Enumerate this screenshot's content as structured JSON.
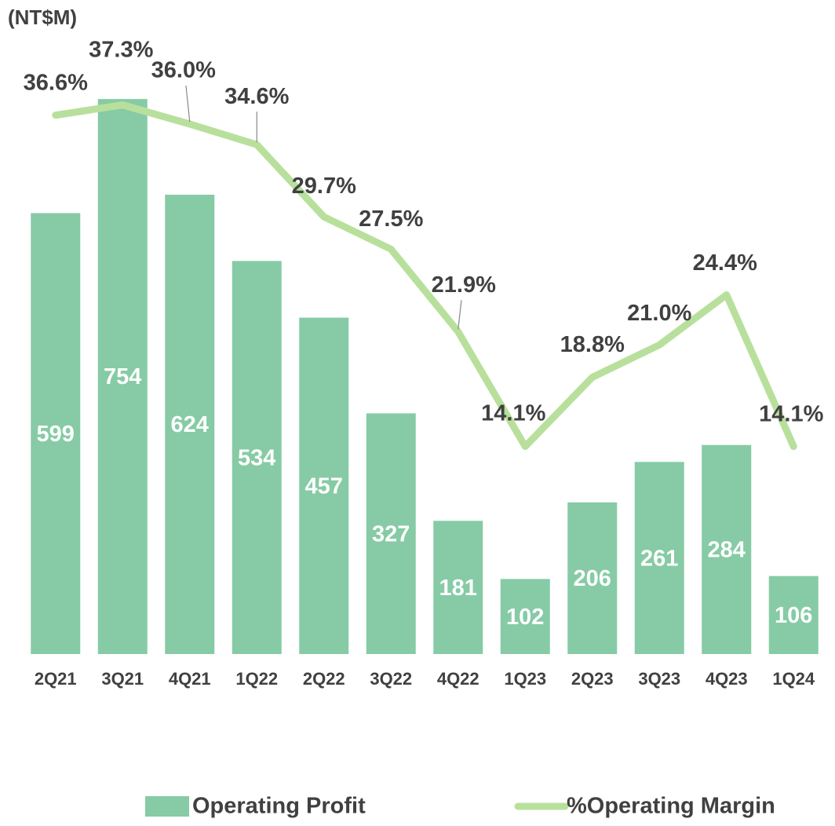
{
  "chart_data": {
    "type": "bar_line",
    "unit_label": "(NT$M)",
    "categories": [
      "2Q21",
      "3Q21",
      "4Q21",
      "1Q22",
      "2Q22",
      "3Q22",
      "4Q22",
      "1Q23",
      "2Q23",
      "3Q23",
      "4Q23",
      "1Q24"
    ],
    "series": [
      {
        "name": "Operating Profit",
        "color": "#86cba5",
        "type": "bar",
        "values": [
          599,
          754,
          624,
          534,
          457,
          327,
          181,
          102,
          206,
          261,
          284,
          106
        ]
      },
      {
        "name": "%Operating Margin",
        "color": "#b8e09c",
        "type": "line",
        "axis": "y2",
        "values": [
          36.6,
          37.3,
          36.0,
          34.6,
          29.7,
          27.5,
          21.9,
          14.1,
          18.8,
          21.0,
          24.4,
          14.1
        ],
        "value_labels": [
          "36.6%",
          "37.3%",
          "36.0%",
          "34.6%",
          "29.7%",
          "27.5%",
          "21.9%",
          "14.1%",
          "18.8%",
          "21.0%",
          "24.4%",
          "14.1%"
        ]
      }
    ],
    "ylim": [
      0,
      800
    ],
    "y2lim": [
      0,
      40
    ],
    "legend": "bottom"
  }
}
